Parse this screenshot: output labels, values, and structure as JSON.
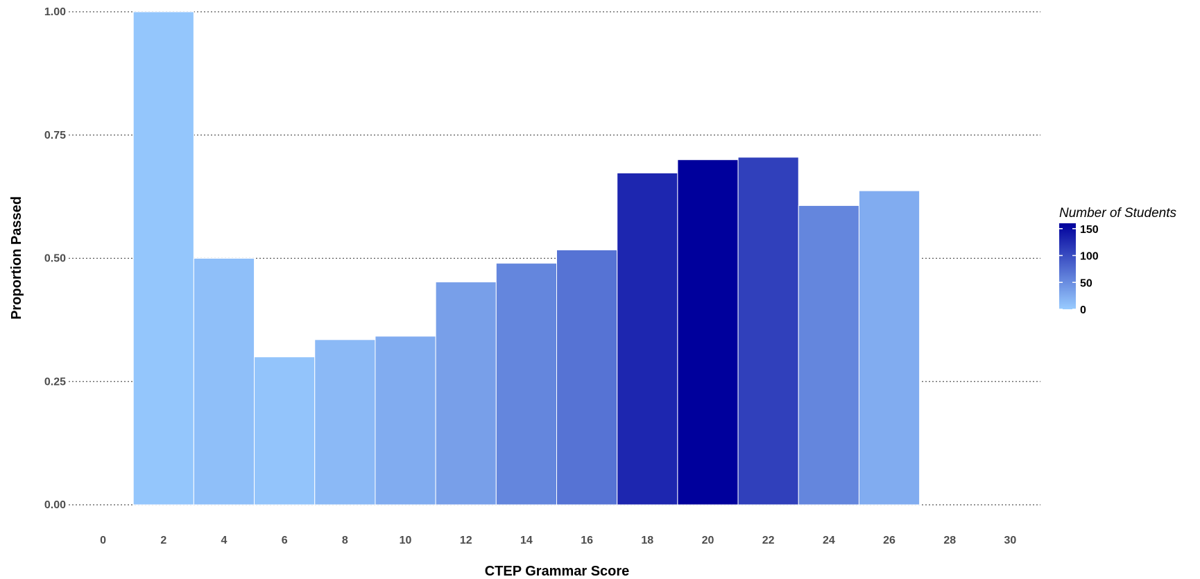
{
  "chart_data": {
    "type": "bar",
    "title": "",
    "xlabel": "CTEP Grammar Score",
    "ylabel": "Proportion Passed",
    "x": [
      2,
      4,
      6,
      8,
      10,
      12,
      14,
      16,
      18,
      20,
      22,
      24,
      26
    ],
    "values": [
      1.0,
      0.5,
      0.3,
      0.335,
      0.342,
      0.452,
      0.49,
      0.517,
      0.673,
      0.7,
      0.705,
      0.607,
      0.637
    ],
    "counts": [
      5,
      10,
      6,
      15,
      25,
      35,
      55,
      70,
      130,
      160,
      110,
      55,
      25
    ],
    "xlim": [
      -1,
      31
    ],
    "ylim": [
      0,
      1
    ],
    "xticks": [
      "0",
      "2",
      "4",
      "6",
      "8",
      "10",
      "12",
      "14",
      "16",
      "18",
      "20",
      "22",
      "24",
      "26",
      "28",
      "30"
    ],
    "yticks": [
      "0.00",
      "0.25",
      "0.50",
      "0.75",
      "1.00"
    ],
    "grid": "horizontal dotted",
    "legend": {
      "title": "Number of Students",
      "placement": "right",
      "labels": [
        "150",
        "100",
        "50",
        "0"
      ],
      "label_values": [
        150,
        100,
        50,
        0
      ],
      "min": 0,
      "max": 160,
      "color_low": "#99ccff",
      "color_high": "#00009c"
    }
  }
}
